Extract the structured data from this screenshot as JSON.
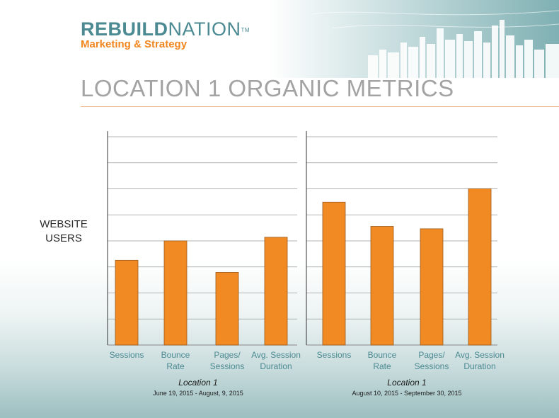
{
  "logo": {
    "name_bold": "REBUILD",
    "name_light": "NATION",
    "trademark": "TM",
    "tagline": "Marketing & Strategy"
  },
  "page_title": "LOCATION 1 ORGANIC METRICS",
  "y_axis_label": [
    "WEBSITE",
    "USERS"
  ],
  "colors": {
    "bar": "#f28a24",
    "bar_stroke": "#9a5a1a",
    "tick_text": "#4b8a92",
    "grid": "#9a9a9a",
    "title": "#a3a3a3",
    "accent_orange": "#f0861e",
    "logo_teal": "#4b8a92"
  },
  "chart_data": [
    {
      "type": "bar",
      "categories": [
        [
          "Sessions"
        ],
        [
          "Bounce",
          "Rate"
        ],
        [
          "Pages/",
          "Sessions"
        ],
        [
          "Avg. Session",
          "Duration"
        ]
      ],
      "values": [
        3.5,
        4.3,
        3.0,
        4.45
      ],
      "ylim": [
        0,
        8.6
      ],
      "gridlines": 8,
      "ylabel": "WEBSITE USERS",
      "caption": "Location 1",
      "subcaption": "June 19, 2015 - August, 9, 2015"
    },
    {
      "type": "bar",
      "categories": [
        [
          "Sessions"
        ],
        [
          "Bounce",
          "Rate"
        ],
        [
          "Pages/",
          "Sessions"
        ],
        [
          "Avg. Session",
          "Duration"
        ]
      ],
      "values": [
        5.9,
        4.9,
        4.8,
        6.45
      ],
      "ylim": [
        0,
        8.6
      ],
      "gridlines": 8,
      "caption": "Location 1",
      "subcaption": "August 10, 2015 - September 30, 2015"
    }
  ]
}
